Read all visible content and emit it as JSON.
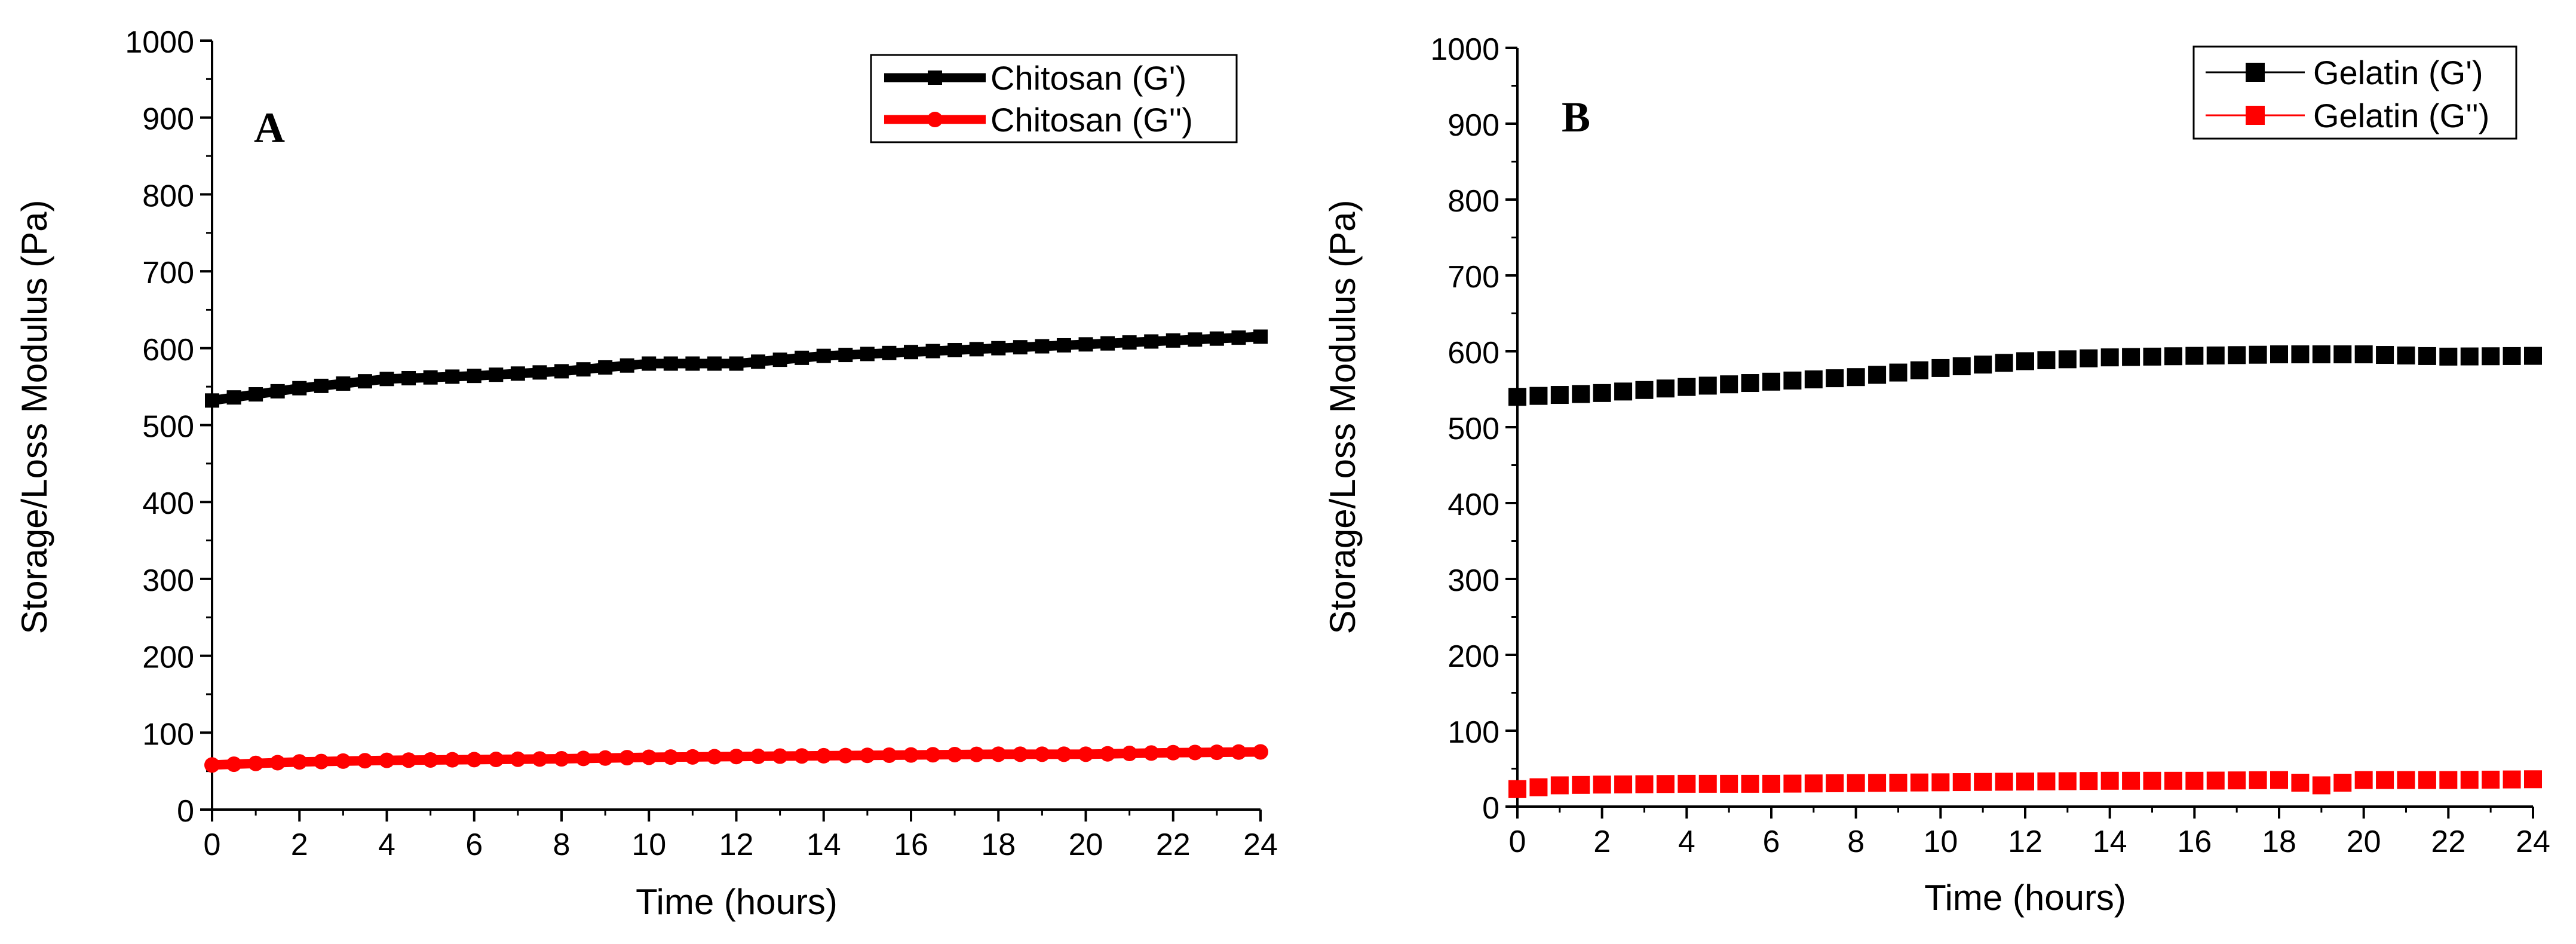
{
  "chart_data": [
    {
      "type": "line",
      "panel_label": "A",
      "title": "",
      "xlabel": "Time (hours)",
      "ylabel": "Storage/Loss Modulus (Pa)",
      "xlim": [
        0,
        24
      ],
      "ylim": [
        0,
        1000
      ],
      "xticks": [
        0,
        2,
        4,
        6,
        8,
        10,
        12,
        14,
        16,
        18,
        20,
        22,
        24
      ],
      "yticks": [
        0,
        100,
        200,
        300,
        400,
        500,
        600,
        700,
        800,
        900,
        1000
      ],
      "grid": false,
      "legend_position": "top-right",
      "series": [
        {
          "name": "Chitosan (G')",
          "color": "#000000",
          "marker": "square",
          "line": "thick",
          "x": [
            0,
            2,
            4,
            6,
            8,
            10,
            12,
            14,
            16,
            18,
            20,
            22,
            24
          ],
          "values": [
            532,
            548,
            560,
            564,
            570,
            580,
            580,
            590,
            595,
            600,
            605,
            610,
            615
          ]
        },
        {
          "name": "Chitosan (G'')",
          "color": "#ff0000",
          "marker": "circle",
          "line": "thick",
          "x": [
            0,
            2,
            4,
            6,
            8,
            10,
            12,
            14,
            16,
            18,
            20,
            22,
            24
          ],
          "values": [
            58,
            62,
            64,
            65,
            66,
            68,
            69,
            70,
            71,
            72,
            72,
            74,
            75
          ]
        }
      ]
    },
    {
      "type": "scatter",
      "panel_label": "B",
      "title": "",
      "xlabel": "Time (hours)",
      "ylabel": "Storage/Loss Modulus (Pa)",
      "xlim": [
        0,
        24
      ],
      "ylim": [
        0,
        1000
      ],
      "xticks": [
        0,
        2,
        4,
        6,
        8,
        10,
        12,
        14,
        16,
        18,
        20,
        22,
        24
      ],
      "yticks": [
        0,
        100,
        200,
        300,
        400,
        500,
        600,
        700,
        800,
        900,
        1000
      ],
      "grid": false,
      "legend_position": "top-right",
      "series": [
        {
          "name": "Gelatin (G')",
          "color": "#000000",
          "marker": "square",
          "line": "none",
          "x": [
            0,
            2,
            4,
            6,
            8,
            10,
            12,
            14,
            16,
            18,
            20,
            22,
            24
          ],
          "values": [
            540,
            545,
            553,
            560,
            566,
            578,
            587,
            592,
            594,
            596,
            596,
            593,
            594
          ]
        },
        {
          "name": "Gelatin (G'')",
          "color": "#ff0000",
          "marker": "square",
          "line": "none",
          "x": [
            0,
            1,
            2,
            4,
            6,
            8,
            10,
            12,
            14,
            16,
            18,
            19,
            20,
            22,
            24
          ],
          "values": [
            23,
            28,
            29,
            30,
            30,
            31,
            32,
            33,
            34,
            34,
            35,
            28,
            35,
            35,
            36
          ]
        }
      ]
    }
  ]
}
